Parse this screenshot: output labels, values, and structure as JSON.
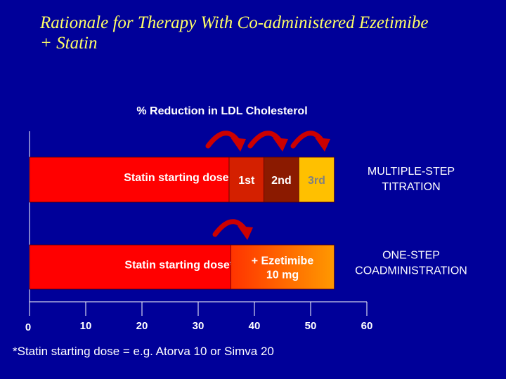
{
  "slide": {
    "title_line1": "Rationale for Therapy With Co-administered Ezetimibe",
    "title_line2": "+ Statin",
    "footnote": "*Statin starting dose = e.g. Atorva 10 or Simva 20"
  },
  "chart_data": {
    "type": "bar",
    "title": "% Reduction in LDL Cholesterol",
    "xlim": [
      0,
      60
    ],
    "xticks": [
      0,
      10,
      20,
      30,
      40,
      50,
      60
    ],
    "grid": false,
    "rows": [
      {
        "label": "MULTIPLE-STEP TITRATION",
        "label_lines": [
          "MULTIPLE-STEP",
          "TITRATION"
        ],
        "segments": [
          {
            "label": "Statin starting dose*",
            "start": 0,
            "end": 35.5,
            "color": "#FF0000",
            "text_color": "#FFFFFF"
          },
          {
            "label": "1st",
            "start": 35.5,
            "end": 41.7,
            "color": "#D42000",
            "text_color": "#FFFFFF"
          },
          {
            "label": "2nd",
            "start": 41.7,
            "end": 47.9,
            "color": "#8B1A00",
            "text_color": "#FFFFFF"
          },
          {
            "label": "3rd",
            "start": 47.9,
            "end": 54.2,
            "color": "#FFC000",
            "text_color": "#808080"
          }
        ]
      },
      {
        "label": "ONE-STEP COADMINISTRATION",
        "label_lines": [
          "ONE-STEP",
          "COADMINISTRATION"
        ],
        "segments": [
          {
            "label": "Statin starting dose*",
            "start": 0,
            "end": 35.8,
            "color": "#FF0000",
            "text_color": "#FFFFFF"
          },
          {
            "label": "+ Ezetimibe 10 mg",
            "label_lines": [
              "+ Ezetimibe",
              "10 mg"
            ],
            "start": 35.8,
            "end": 54.2,
            "color": "#FF7A00",
            "text_color": "#FFFFFF",
            "gradient": true
          }
        ]
      }
    ]
  },
  "colors": {
    "background": "#000099",
    "title": "#FFFF66",
    "arrow": "#CC0000",
    "axis": "#FFFFFF"
  }
}
